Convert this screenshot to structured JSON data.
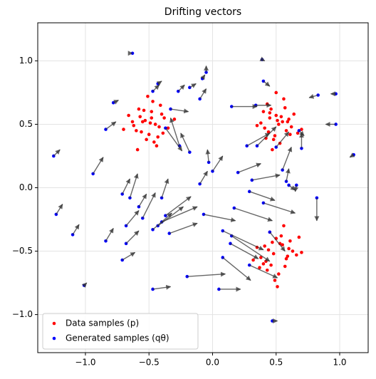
{
  "chart_data": {
    "type": "scatter",
    "title": "Drifting vectors",
    "xlim": [
      -1.375,
      1.224
    ],
    "ylim": [
      -1.3,
      1.3
    ],
    "xticks": [
      {
        "value": -1.0,
        "label": "−1.0"
      },
      {
        "value": -0.5,
        "label": "−0.5"
      },
      {
        "value": 0.0,
        "label": "0.0"
      },
      {
        "value": 0.5,
        "label": "0.5"
      },
      {
        "value": 1.0,
        "label": "1.0"
      }
    ],
    "yticks": [
      {
        "value": -1.0,
        "label": "−1.0"
      },
      {
        "value": -0.5,
        "label": "−0.5"
      },
      {
        "value": 0.0,
        "label": "0.0"
      },
      {
        "value": 0.5,
        "label": "0.5"
      },
      {
        "value": 1.0,
        "label": "1.0"
      }
    ],
    "grid": true,
    "legend": "lower left",
    "series": [
      {
        "name": "Data samples (p)",
        "color": "#ff0000",
        "x": [
          -0.55,
          -0.42,
          -0.48,
          -0.6,
          -0.38,
          -0.52,
          -0.45,
          -0.66,
          -0.5,
          -0.35,
          -0.58,
          -0.44,
          -0.53,
          -0.47,
          -0.62,
          -0.4,
          -0.56,
          -0.49,
          -0.3,
          -0.7,
          -0.51,
          -0.43,
          -0.57,
          -0.46,
          -0.54,
          -0.39,
          -0.63,
          -0.48,
          -0.59,
          -0.41,
          0.52,
          0.45,
          0.58,
          0.4,
          0.55,
          0.48,
          0.62,
          0.43,
          0.5,
          0.67,
          0.38,
          0.53,
          0.46,
          0.6,
          0.41,
          0.56,
          0.49,
          0.64,
          0.44,
          0.51,
          0.35,
          0.57,
          0.47,
          0.54,
          0.7,
          0.42,
          0.59,
          0.5,
          0.45,
          0.61,
          0.48,
          0.55,
          0.42,
          0.6,
          0.5,
          0.38,
          0.57,
          0.45,
          0.63,
          0.52,
          0.35,
          0.58,
          0.47,
          0.66,
          0.43,
          0.54,
          0.4,
          0.61,
          0.49,
          0.7,
          0.44,
          0.56,
          0.32,
          0.53,
          0.46,
          0.59,
          0.41,
          0.51,
          0.68,
          0.37
        ],
        "y": [
          0.52,
          0.48,
          0.6,
          0.45,
          0.55,
          0.38,
          0.5,
          0.57,
          0.42,
          0.47,
          0.62,
          0.33,
          0.53,
          0.68,
          0.49,
          0.58,
          0.44,
          0.51,
          0.54,
          0.46,
          0.72,
          0.4,
          0.56,
          0.36,
          0.61,
          0.43,
          0.52,
          0.55,
          0.3,
          0.65,
          0.5,
          0.55,
          0.45,
          0.6,
          0.52,
          0.38,
          0.48,
          0.66,
          0.57,
          0.43,
          0.51,
          0.35,
          0.62,
          0.54,
          0.47,
          0.7,
          0.41,
          0.58,
          0.44,
          0.53,
          0.49,
          0.63,
          0.3,
          0.56,
          0.46,
          0.39,
          0.52,
          0.75,
          0.59,
          0.42,
          -0.52,
          -0.45,
          -0.58,
          -0.48,
          -0.4,
          -0.55,
          -0.62,
          -0.35,
          -0.5,
          -0.68,
          -0.47,
          -0.56,
          -0.43,
          -0.53,
          -0.65,
          -0.38,
          -0.6,
          -0.42,
          -0.73,
          -0.51,
          -0.49,
          -0.3,
          -0.57,
          -0.44,
          -0.61,
          -0.54,
          -0.46,
          -0.78,
          -0.39,
          -0.63
        ]
      },
      {
        "name": "Generated samples (qθ)",
        "color": "#0000ff",
        "arrow_color": "#333333",
        "x": [
          -1.25,
          -1.23,
          -1.1,
          -1.01,
          -0.94,
          -0.84,
          -0.84,
          -0.78,
          -0.71,
          -0.71,
          -0.68,
          -0.68,
          -0.65,
          -0.63,
          -0.58,
          -0.55,
          -0.47,
          -0.43,
          -0.4,
          -0.37,
          -0.34,
          -0.47,
          -0.43,
          -0.37,
          -0.4,
          -0.33,
          -0.27,
          -0.18,
          -0.26,
          -0.18,
          -0.1,
          -0.08,
          -0.05,
          -0.03,
          -0.1,
          0.0,
          -0.07,
          0.08,
          0.15,
          0.14,
          0.05,
          -0.47,
          -0.2,
          0.08,
          0.17,
          0.15,
          0.2,
          0.31,
          0.27,
          0.35,
          0.4,
          0.29,
          0.34,
          0.39,
          0.4,
          0.47,
          0.5,
          0.55,
          0.58,
          0.6,
          0.66,
          0.68,
          0.7,
          0.82,
          0.83,
          0.97,
          0.97,
          1.11,
          0.29,
          0.45
        ],
        "y": [
          0.25,
          -0.21,
          -0.37,
          -0.77,
          0.11,
          -0.42,
          0.46,
          0.67,
          -0.57,
          -0.05,
          -0.3,
          -0.44,
          -0.08,
          1.06,
          -0.15,
          -0.24,
          -0.33,
          -0.3,
          -0.27,
          -0.22,
          -0.36,
          0.76,
          0.82,
          0.47,
          -0.08,
          0.62,
          0.76,
          0.79,
          0.33,
          0.28,
          0.7,
          0.86,
          0.91,
          0.2,
          0.03,
          0.13,
          -0.21,
          -0.34,
          -0.38,
          -0.44,
          -0.8,
          -0.8,
          -0.7,
          -0.55,
          -0.16,
          0.64,
          0.12,
          0.06,
          0.33,
          0.33,
          -0.12,
          -0.03,
          0.65,
          1.01,
          0.84,
          -1.05,
          0.32,
          0.14,
          0.05,
          0.02,
          0.02,
          0.45,
          0.31,
          -0.08,
          0.73,
          0.74,
          0.5,
          0.26,
          -0.61,
          -0.35
        ],
        "u": [
          0.05,
          0.05,
          0.05,
          0.02,
          0.08,
          0.06,
          0.08,
          0.04,
          0.1,
          0.06,
          0.1,
          0.1,
          0.06,
          0.0,
          0.06,
          0.1,
          0.15,
          0.2,
          0.28,
          0.2,
          0.22,
          0.05,
          0.03,
          0.13,
          0.05,
          0.14,
          0.05,
          0.05,
          -0.07,
          -0.07,
          0.05,
          0.02,
          0.0,
          -0.01,
          0.06,
          0.08,
          0.25,
          0.32,
          0.3,
          0.22,
          0.17,
          0.14,
          0.3,
          0.22,
          0.3,
          0.2,
          0.18,
          0.22,
          0.18,
          0.15,
          0.25,
          0.2,
          0.12,
          0.02,
          0.05,
          0.04,
          0.1,
          0.07,
          0.02,
          0.05,
          -0.01,
          0.04,
          0.0,
          0.0,
          -0.07,
          -0.04,
          -0.08,
          -0.03,
          0.22,
          0.12
        ],
        "v": [
          0.05,
          0.08,
          0.08,
          0.02,
          0.13,
          0.1,
          0.06,
          0.02,
          0.06,
          0.12,
          0.12,
          0.1,
          0.19,
          0.0,
          0.1,
          0.2,
          0.13,
          0.15,
          0.12,
          0.15,
          0.08,
          0.05,
          0.02,
          -0.18,
          0.15,
          -0.02,
          0.05,
          0.03,
          0.22,
          0.15,
          0.08,
          0.03,
          0.05,
          0.1,
          0.1,
          0.12,
          -0.05,
          -0.15,
          -0.2,
          -0.12,
          0.0,
          0.02,
          0.02,
          -0.18,
          -0.1,
          0.0,
          0.07,
          0.04,
          0.1,
          0.15,
          -0.08,
          -0.07,
          0.0,
          -0.01,
          -0.04,
          0.0,
          0.12,
          0.18,
          0.1,
          -0.04,
          -0.05,
          -0.04,
          0.12,
          -0.18,
          -0.02,
          0.0,
          0.0,
          -0.02,
          -0.1,
          -0.15
        ]
      }
    ]
  }
}
